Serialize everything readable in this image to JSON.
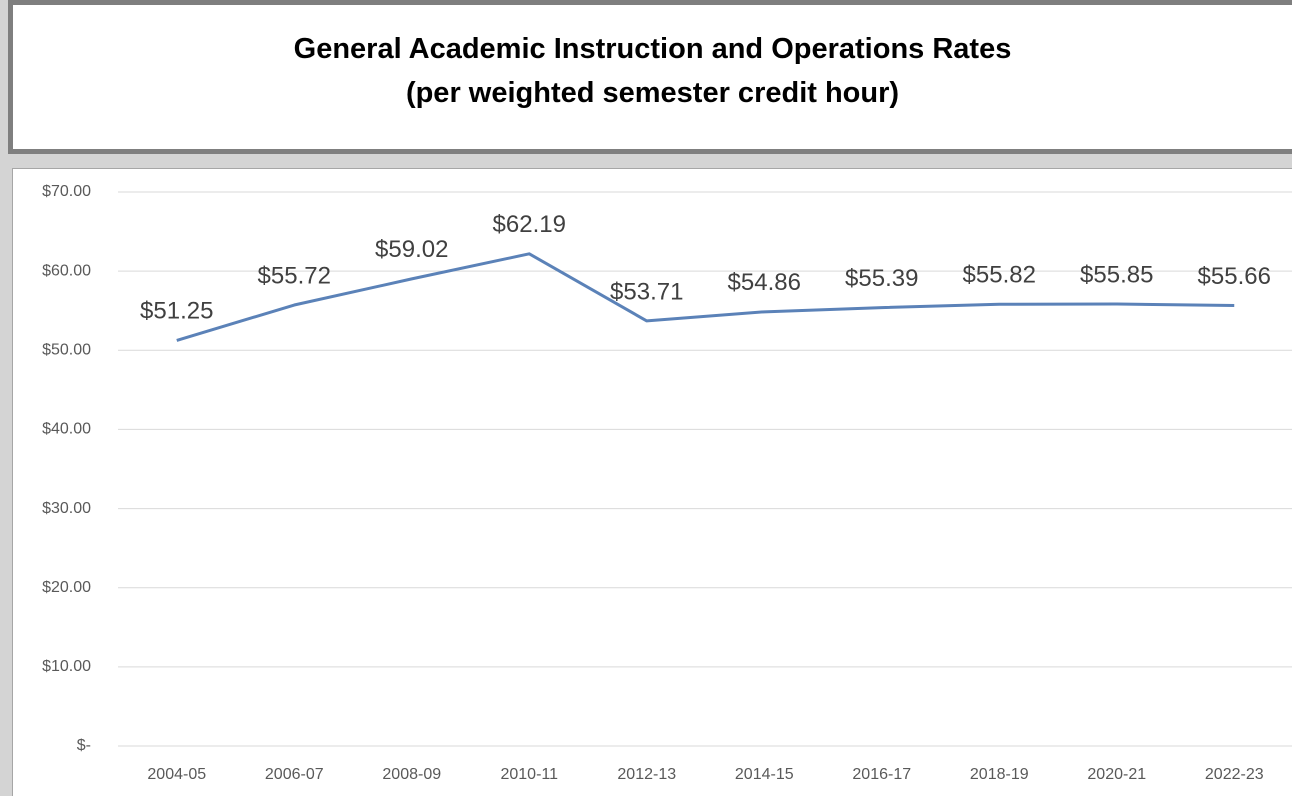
{
  "chart_data": {
    "type": "line",
    "title": "General Academic Instruction and Operations Rates",
    "subtitle": "(per weighted semester credit hour)",
    "categories": [
      "2004-05",
      "2006-07",
      "2008-09",
      "2010-11",
      "2012-13",
      "2014-15",
      "2016-17",
      "2018-19",
      "2020-21",
      "2022-23"
    ],
    "values": [
      51.25,
      55.72,
      59.02,
      62.19,
      53.71,
      54.86,
      55.39,
      55.82,
      55.85,
      55.66
    ],
    "value_labels": [
      "$51.25",
      "$55.72",
      "$59.02",
      "$62.19",
      "$53.71",
      "$54.86",
      "$55.39",
      "$55.82",
      "$55.85",
      "$55.66"
    ],
    "color": "#5b82b8",
    "ylim": [
      0,
      70
    ],
    "yticks": [
      {
        "value": 0,
        "label": "$-"
      },
      {
        "value": 10,
        "label": "$10.00"
      },
      {
        "value": 20,
        "label": "$20.00"
      },
      {
        "value": 30,
        "label": "$30.00"
      },
      {
        "value": 40,
        "label": "$40.00"
      },
      {
        "value": 50,
        "label": "$50.00"
      },
      {
        "value": 60,
        "label": "$60.00"
      },
      {
        "value": 70,
        "label": "$70.00"
      }
    ],
    "grid": true
  }
}
